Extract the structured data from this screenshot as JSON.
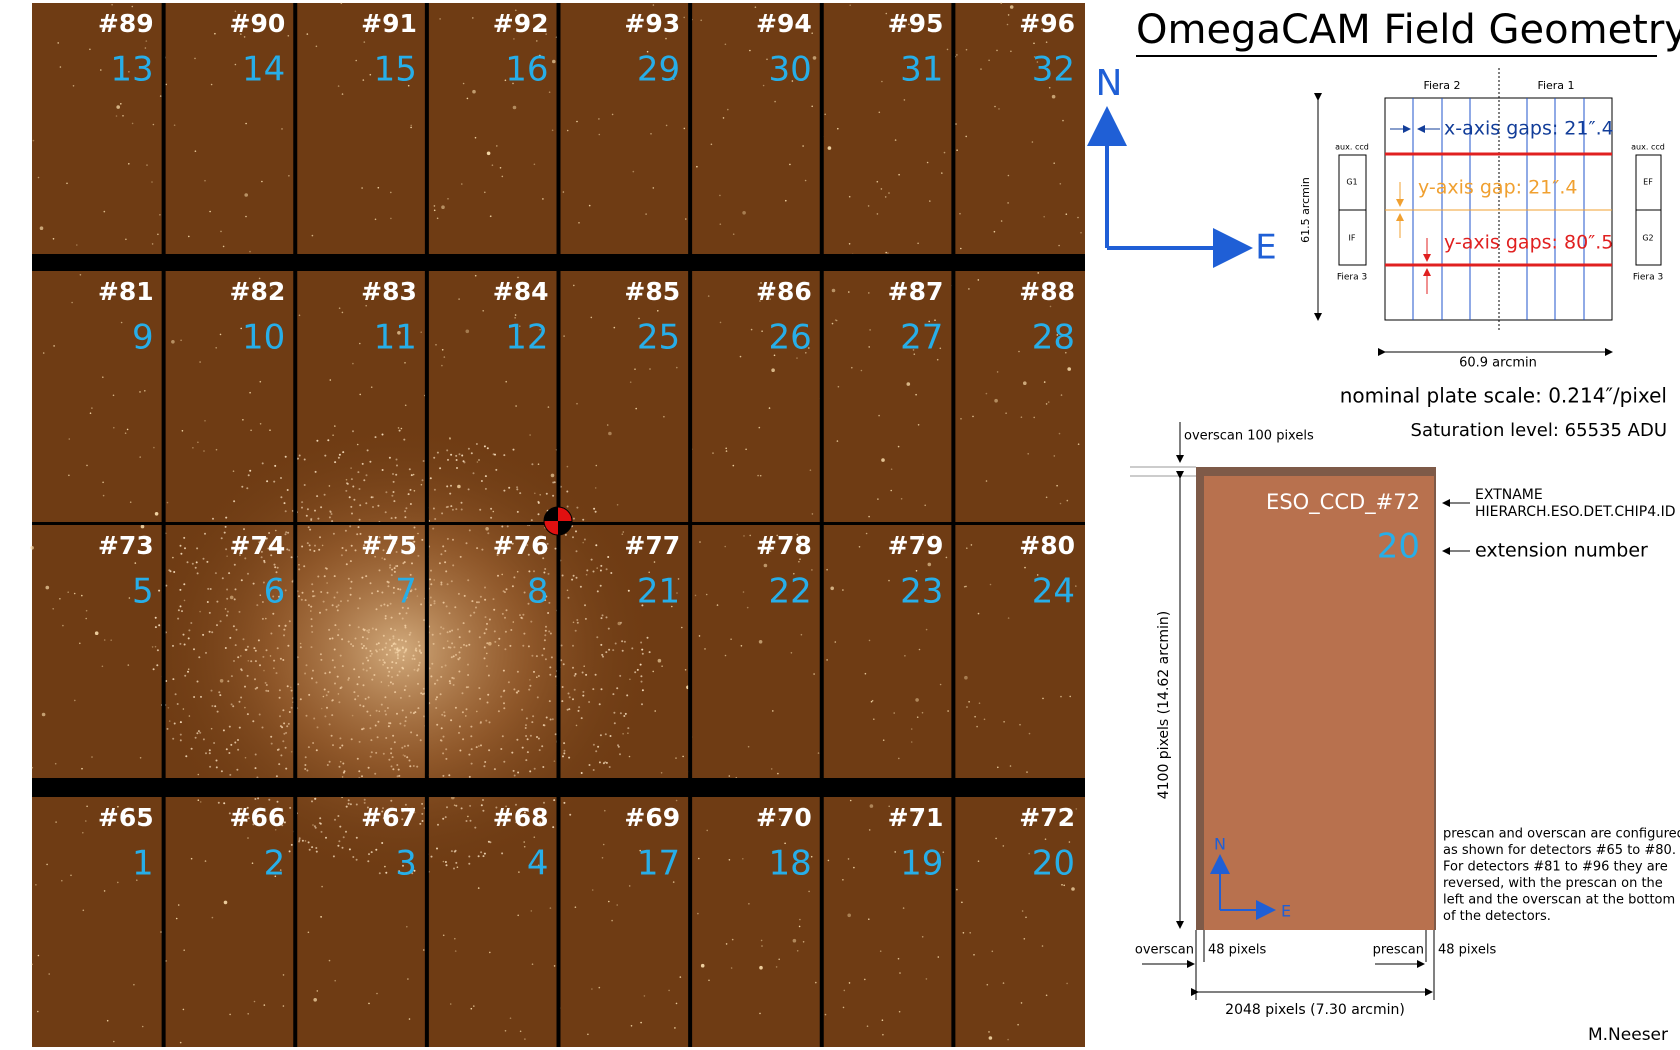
{
  "title": "OmegaCAM Field Geometry",
  "ccds": [
    {
      "id": "#89",
      "ext": "13"
    },
    {
      "id": "#90",
      "ext": "14"
    },
    {
      "id": "#91",
      "ext": "15"
    },
    {
      "id": "#92",
      "ext": "16"
    },
    {
      "id": "#93",
      "ext": "29"
    },
    {
      "id": "#94",
      "ext": "30"
    },
    {
      "id": "#95",
      "ext": "31"
    },
    {
      "id": "#96",
      "ext": "32"
    },
    {
      "id": "#81",
      "ext": "9"
    },
    {
      "id": "#82",
      "ext": "10"
    },
    {
      "id": "#83",
      "ext": "11"
    },
    {
      "id": "#84",
      "ext": "12"
    },
    {
      "id": "#85",
      "ext": "25"
    },
    {
      "id": "#86",
      "ext": "26"
    },
    {
      "id": "#87",
      "ext": "27"
    },
    {
      "id": "#88",
      "ext": "28"
    },
    {
      "id": "#73",
      "ext": "5"
    },
    {
      "id": "#74",
      "ext": "6"
    },
    {
      "id": "#75",
      "ext": "7"
    },
    {
      "id": "#76",
      "ext": "8"
    },
    {
      "id": "#77",
      "ext": "21"
    },
    {
      "id": "#78",
      "ext": "22"
    },
    {
      "id": "#79",
      "ext": "23"
    },
    {
      "id": "#80",
      "ext": "24"
    },
    {
      "id": "#65",
      "ext": "1"
    },
    {
      "id": "#66",
      "ext": "2"
    },
    {
      "id": "#67",
      "ext": "3"
    },
    {
      "id": "#68",
      "ext": "4"
    },
    {
      "id": "#69",
      "ext": "17"
    },
    {
      "id": "#70",
      "ext": "18"
    },
    {
      "id": "#71",
      "ext": "19"
    },
    {
      "id": "#72",
      "ext": "20"
    }
  ],
  "compass": {
    "north": "N",
    "east": "E"
  },
  "field": {
    "fiera_2": "Fiera 2",
    "fiera_1": "Fiera 1",
    "aux_left": "aux. ccd",
    "aux_right": "aux. ccd",
    "g1": "G1",
    "if": "IF",
    "ef": "EF",
    "g2": "G2",
    "fiera_3_left": "Fiera 3",
    "fiera_3_right": "Fiera 3",
    "x_gaps": "x-axis gaps: 21″.4",
    "y_gap": "y-axis gap: 21″.4",
    "y_gaps": "y-axis gaps: 80″.5",
    "height": "61.5 arcmin",
    "width": "60.9 arcmin"
  },
  "plate_scale": "nominal plate scale: 0.214″/pixel",
  "saturation": "Saturation level: 65535 ADU",
  "detector": {
    "overscan_top": "overscan  100 pixels",
    "name": "ESO_CCD_#72",
    "ext": "20",
    "extname": "EXTNAME",
    "hierarch": "HIERARCH.ESO.DET.CHIP4.ID",
    "extension_number": "extension number",
    "height": "4100 pixels (14.62 arcmin)",
    "north": "N",
    "east": "E",
    "overscan": "overscan",
    "overscan_px": "48 pixels",
    "prescan": "prescan",
    "prescan_px": "48 pixels",
    "width": "2048 pixels (7.30 arcmin)"
  },
  "note_lines": [
    "prescan and overscan are configured",
    "as shown for detectors #65 to #80.",
    "For detectors #81 to #96 they are",
    "reversed, with the prescan on the",
    "left and the overscan at the bottom",
    "of the detectors."
  ],
  "author": "M.Neeser"
}
